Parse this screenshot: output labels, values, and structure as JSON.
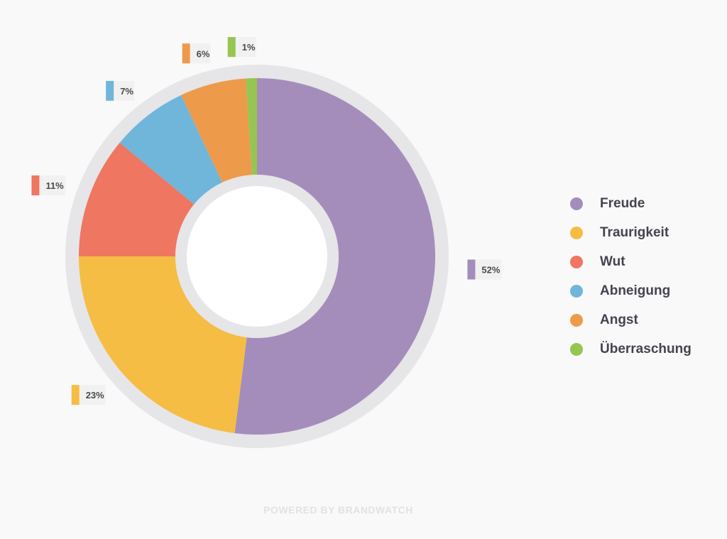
{
  "chart_data": {
    "type": "pie",
    "subtype": "donut",
    "categories": [
      "Freude",
      "Traurigkeit",
      "Wut",
      "Abneigung",
      "Angst",
      "Überraschung"
    ],
    "values": [
      52,
      23,
      11,
      7,
      6,
      1
    ],
    "labels": [
      "52%",
      "23%",
      "11%",
      "7%",
      "6%",
      "1%"
    ],
    "colors": [
      "#a48dbb",
      "#f5bd44",
      "#ef7660",
      "#70b6da",
      "#ee9a4b",
      "#96c552"
    ],
    "legend_position": "right"
  },
  "footer": {
    "text": "POWERED BY BRANDWATCH"
  }
}
